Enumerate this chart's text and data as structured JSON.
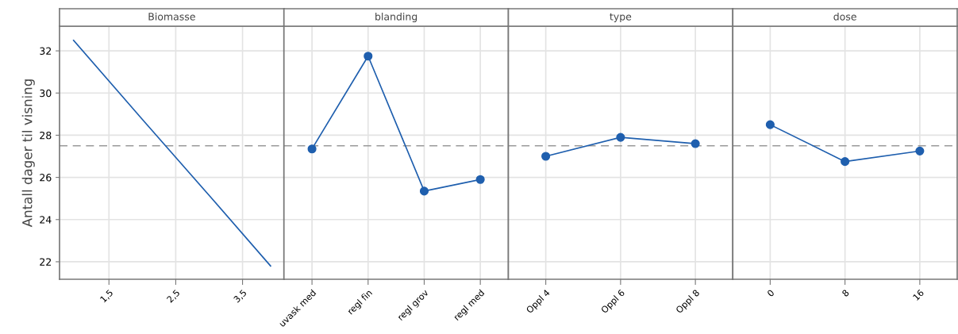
{
  "chart_data": [
    {
      "type": "line",
      "title": "Biomasse",
      "ylabel": "Antall dager til visning",
      "x": [
        0.97,
        2.0,
        3.0,
        3.92
      ],
      "series": [
        {
          "color": "#1f5fae",
          "values": [
            32.5,
            28.75,
            25.15,
            21.8
          ]
        }
      ],
      "xlim": [
        0.76,
        4.12
      ],
      "xticks": [
        {
          "value": 1.5,
          "label": "1,5"
        },
        {
          "value": 2.5,
          "label": "2,5"
        },
        {
          "value": 3.5,
          "label": "3,5"
        }
      ],
      "ylim": [
        21.17,
        33.17
      ],
      "yticks": [
        22,
        24,
        26,
        28,
        30,
        32
      ],
      "grid": true,
      "marker": "none",
      "line_style": "solid",
      "ref_lines": [
        {
          "axis": "y",
          "value": 27.5,
          "color": "#999999",
          "line_style": "dashed"
        }
      ]
    },
    {
      "type": "line",
      "title": "blanding",
      "categories": [
        "uvask med",
        "regl fin",
        "regl grov",
        "regl med"
      ],
      "series": [
        {
          "color": "#1f5fae",
          "values": [
            27.35,
            31.75,
            25.35,
            25.9
          ]
        }
      ],
      "ylim": [
        21.17,
        33.17
      ],
      "yticks": [
        22,
        24,
        26,
        28,
        30,
        32
      ],
      "tick_labels": "x",
      "grid": true,
      "marker": "circle",
      "line_style": "solid",
      "ref_lines": [
        {
          "axis": "y",
          "value": 27.5,
          "color": "#999999",
          "line_style": "dashed"
        }
      ]
    },
    {
      "type": "line",
      "title": "type",
      "categories": [
        "Oppl 4",
        "Oppl 6",
        "Oppl 8"
      ],
      "series": [
        {
          "color": "#1f5fae",
          "values": [
            27.0,
            27.9,
            27.6
          ]
        }
      ],
      "ylim": [
        21.17,
        33.17
      ],
      "yticks": [
        22,
        24,
        26,
        28,
        30,
        32
      ],
      "tick_labels": "x",
      "grid": true,
      "marker": "circle",
      "line_style": "solid",
      "ref_lines": [
        {
          "axis": "y",
          "value": 27.5,
          "color": "#999999",
          "line_style": "dashed"
        }
      ]
    },
    {
      "type": "line",
      "title": "dose",
      "categories": [
        "0",
        "8",
        "16"
      ],
      "series": [
        {
          "color": "#1f5fae",
          "values": [
            28.5,
            26.75,
            27.25
          ]
        }
      ],
      "ylim": [
        21.17,
        33.17
      ],
      "yticks": [
        22,
        24,
        26,
        28,
        30,
        32
      ],
      "tick_labels": "x",
      "grid": true,
      "marker": "circle",
      "line_style": "solid",
      "ref_lines": [
        {
          "axis": "y",
          "value": 27.5,
          "color": "#999999",
          "line_style": "dashed"
        }
      ]
    }
  ]
}
